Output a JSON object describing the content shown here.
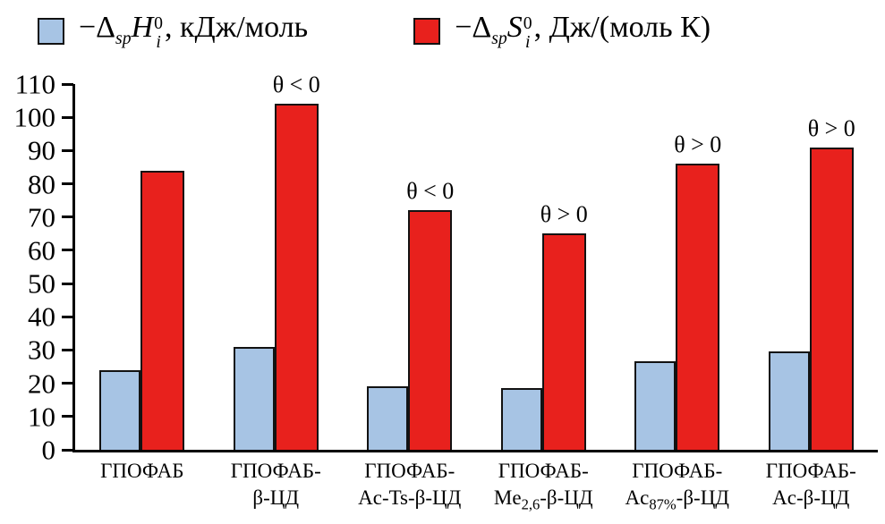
{
  "chart_data": {
    "type": "bar",
    "title": "",
    "ylim": [
      0,
      110
    ],
    "yticks": [
      0,
      10,
      20,
      30,
      40,
      50,
      60,
      70,
      80,
      90,
      100,
      110
    ],
    "grid": false,
    "legend_position": "top",
    "categories": [
      "ГПОФАБ",
      "ГПОФАБ-β-ЦД",
      "ГПОФАБ-Ac-Ts-β-ЦД",
      "ГПОФАБ-Me2,6-β-ЦД",
      "ГПОФАБ-Ac87%-β-ЦД",
      "ГПОФАБ-Ac-β-ЦД"
    ],
    "category_labels": [
      {
        "lines": [
          [
            {
              "t": "ГПОФАБ"
            }
          ]
        ]
      },
      {
        "lines": [
          [
            {
              "t": "ГПОФАБ-"
            }
          ],
          [
            {
              "t": "β-ЦД"
            }
          ]
        ]
      },
      {
        "lines": [
          [
            {
              "t": "ГПОФАБ-"
            }
          ],
          [
            {
              "t": "Ac-Ts-β-ЦД"
            }
          ]
        ]
      },
      {
        "lines": [
          [
            {
              "t": "ГПОФАБ-"
            }
          ],
          [
            {
              "t": "Me"
            },
            {
              "t": "2,6",
              "sub": true
            },
            {
              "t": "-β-ЦД"
            }
          ]
        ]
      },
      {
        "lines": [
          [
            {
              "t": "ГПОФАБ-"
            }
          ],
          [
            {
              "t": "Ac"
            },
            {
              "t": "87%",
              "sub": true
            },
            {
              "t": "-β-ЦД"
            }
          ]
        ]
      },
      {
        "lines": [
          [
            {
              "t": "ГПОФАБ-"
            }
          ],
          [
            {
              "t": "Ac-β-ЦД"
            }
          ]
        ]
      }
    ],
    "series": [
      {
        "name": "−ΔspHi0, кДж/моль",
        "color": "#a7c4e4",
        "border": "#121212",
        "values": [
          24,
          31,
          19,
          18.5,
          26.5,
          29.5
        ]
      },
      {
        "name": "−ΔspSi0, Дж/(моль К)",
        "color": "#e8211d",
        "border": "#121212",
        "values": [
          84,
          104,
          72,
          65,
          86,
          91
        ]
      }
    ],
    "annotations": [
      "",
      "θ < 0",
      "θ < 0",
      "θ > 0",
      "θ > 0",
      "θ > 0"
    ]
  },
  "legend": [
    {
      "prefix": "−Δ",
      "prefix_sub": "sp",
      "symbol": "H",
      "sym_sub": "i",
      "sym_sup": "0",
      "suffix": ", кДж/моль"
    },
    {
      "prefix": "−Δ",
      "prefix_sub": "sp",
      "symbol": "S",
      "sym_sub": "i",
      "sym_sup": "0",
      "suffix": ", Дж/(моль К)"
    }
  ]
}
